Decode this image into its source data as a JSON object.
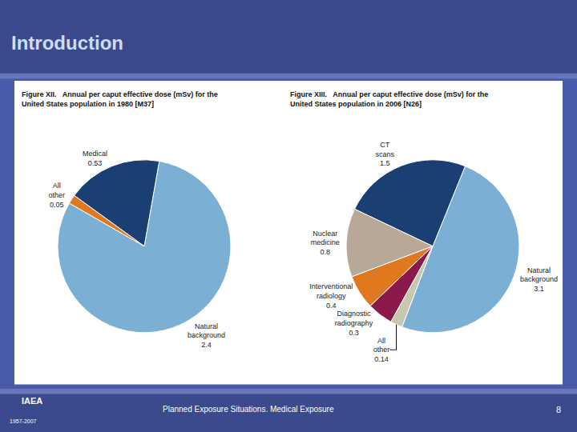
{
  "title": "Introduction",
  "annotations": [
    "Planned Exposure Situations. Medical Exposure",
    "8",
    "IAEA",
    "1957-2007"
  ],
  "chart_data": [
    {
      "type": "pie",
      "title": "Figure XII.   Annual per caput effective dose (mSv) for the\nUnited States population in 1980 [M37]",
      "categories": [
        "Natural background",
        "Medical",
        "All other"
      ],
      "values": [
        2.4,
        0.53,
        0.05
      ],
      "colors": [
        "#7bafd4",
        "#1a3f72",
        "#e07820"
      ],
      "data_labels": true
    },
    {
      "type": "pie",
      "title": "Figure XIII.   Annual per caput effective dose (mSv) for the\nUnited States population in 2006 [N26]",
      "categories": [
        "Natural background",
        "CT scans",
        "Nuclear medicine",
        "Interventional radiology",
        "Diagnostic radiography",
        "All other"
      ],
      "values": [
        3.1,
        1.5,
        0.8,
        0.4,
        0.3,
        0.14
      ],
      "colors": [
        "#7bafd4",
        "#1a3f72",
        "#b8a898",
        "#e07820",
        "#8b1a4a",
        "#c8c8b0"
      ],
      "data_labels": true
    }
  ]
}
